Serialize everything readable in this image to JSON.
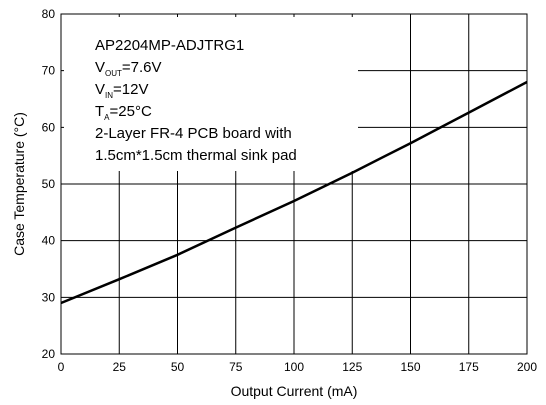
{
  "chart_data": {
    "type": "line",
    "xlabel": "Output Current (mA)",
    "ylabel": "Case Temperature (°C)",
    "xlim": [
      0,
      200
    ],
    "ylim": [
      20,
      80
    ],
    "xticks": [
      0,
      25,
      50,
      75,
      100,
      125,
      150,
      175,
      200
    ],
    "yticks": [
      20,
      30,
      40,
      50,
      60,
      70,
      80
    ],
    "grid": true,
    "series": [
      {
        "x": [
          0,
          25,
          50,
          75,
          100,
          125,
          150,
          175,
          200
        ],
        "y": [
          29,
          33.2,
          37.5,
          42.3,
          47,
          52,
          57.2,
          62.6,
          68
        ]
      }
    ],
    "annotations": {
      "part": "AP2204MP-ADJTRG1",
      "vout": {
        "prefix": "V",
        "sub": "OUT",
        "value": "=7.6V"
      },
      "vin": {
        "prefix": "V",
        "sub": "IN",
        "value": "=12V"
      },
      "ta": {
        "prefix": "T",
        "sub": "A",
        "value": "=25°C"
      },
      "board_line1": "2-Layer FR-4 PCB board with",
      "board_line2": "1.5cm*1.5cm thermal sink pad"
    }
  }
}
